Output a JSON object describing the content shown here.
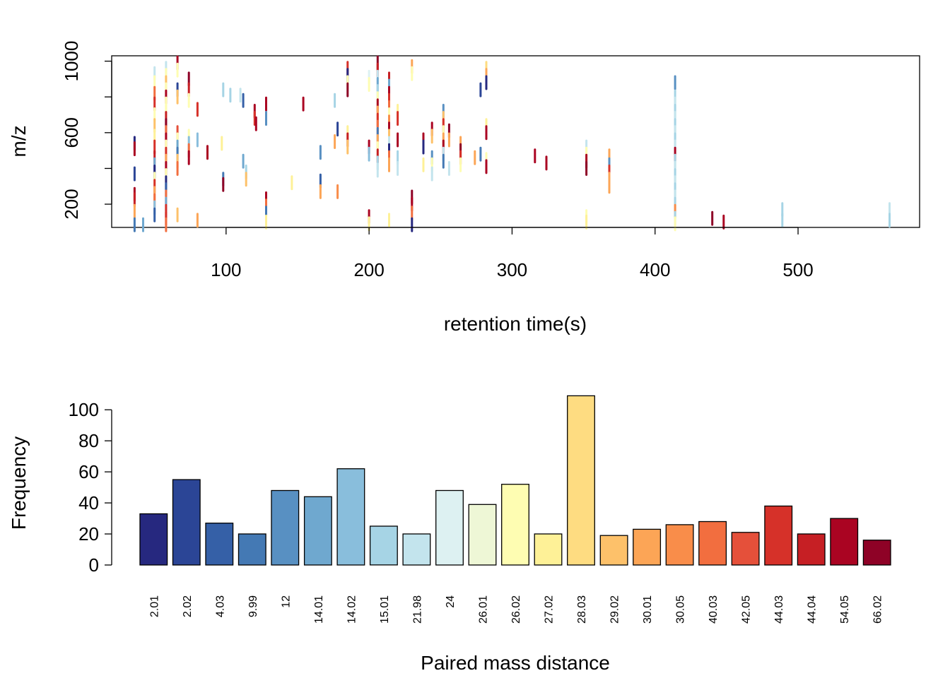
{
  "chart_data": [
    {
      "type": "scatter",
      "xlabel": "retention time(s)",
      "ylabel": "m/z",
      "xlim": [
        20,
        585
      ],
      "ylim": [
        70,
        1030
      ],
      "x_ticks": [
        100,
        200,
        300,
        400,
        500
      ],
      "y_ticks": [
        200,
        600,
        1000
      ],
      "y_minor_ticks": [
        400,
        800
      ],
      "grid": false,
      "marker": "vertical-dash",
      "colors_by_distance": true,
      "points": [
        [
          36,
          540,
          0
        ],
        [
          36,
          510,
          21
        ],
        [
          36,
          255,
          21
        ],
        [
          36,
          225,
          20
        ],
        [
          36,
          160,
          15
        ],
        [
          36,
          370,
          1
        ],
        [
          36,
          85,
          3
        ],
        [
          42,
          85,
          5
        ],
        [
          50,
          930,
          8
        ],
        [
          50,
          880,
          11
        ],
        [
          50,
          820,
          17
        ],
        [
          50,
          760,
          19
        ],
        [
          50,
          700,
          11
        ],
        [
          50,
          640,
          14
        ],
        [
          50,
          580,
          12
        ],
        [
          50,
          520,
          19
        ],
        [
          50,
          460,
          20
        ],
        [
          50,
          420,
          5
        ],
        [
          50,
          380,
          0
        ],
        [
          50,
          340,
          11
        ],
        [
          50,
          300,
          19
        ],
        [
          50,
          260,
          15
        ],
        [
          50,
          220,
          17
        ],
        [
          50,
          180,
          6
        ],
        [
          50,
          140,
          2
        ],
        [
          58,
          960,
          8
        ],
        [
          58,
          920,
          11
        ],
        [
          58,
          880,
          14
        ],
        [
          58,
          840,
          11
        ],
        [
          58,
          800,
          21
        ],
        [
          58,
          760,
          11
        ],
        [
          58,
          720,
          11
        ],
        [
          58,
          680,
          20
        ],
        [
          58,
          640,
          22
        ],
        [
          58,
          600,
          17
        ],
        [
          58,
          560,
          21
        ],
        [
          58,
          520,
          11
        ],
        [
          58,
          480,
          19
        ],
        [
          58,
          440,
          15
        ],
        [
          58,
          400,
          21
        ],
        [
          58,
          360,
          11
        ],
        [
          58,
          320,
          0
        ],
        [
          58,
          280,
          2
        ],
        [
          58,
          240,
          17
        ],
        [
          58,
          200,
          5
        ],
        [
          58,
          160,
          19
        ],
        [
          58,
          120,
          19
        ],
        [
          58,
          85,
          17
        ],
        [
          66,
          990,
          21
        ],
        [
          66,
          950,
          11
        ],
        [
          66,
          840,
          1
        ],
        [
          66,
          800,
          14
        ],
        [
          66,
          600,
          18
        ],
        [
          66,
          560,
          11
        ],
        [
          66,
          520,
          5
        ],
        [
          66,
          480,
          3
        ],
        [
          66,
          440,
          14
        ],
        [
          66,
          400,
          17
        ],
        [
          66,
          140,
          14
        ],
        [
          74,
          900,
          22
        ],
        [
          74,
          840,
          20
        ],
        [
          74,
          780,
          11
        ],
        [
          74,
          580,
          11
        ],
        [
          74,
          540,
          6
        ],
        [
          74,
          500,
          17
        ],
        [
          74,
          460,
          21
        ],
        [
          80,
          730,
          19
        ],
        [
          80,
          560,
          6
        ],
        [
          80,
          110,
          15
        ],
        [
          87,
          490,
          21
        ],
        [
          97,
          540,
          12
        ],
        [
          98,
          840,
          7
        ],
        [
          98,
          340,
          3
        ],
        [
          98,
          310,
          22
        ],
        [
          103,
          810,
          7
        ],
        [
          110,
          810,
          8
        ],
        [
          112,
          780,
          2
        ],
        [
          112,
          440,
          5
        ],
        [
          114,
          380,
          7
        ],
        [
          114,
          340,
          14
        ],
        [
          120,
          720,
          21
        ],
        [
          120,
          680,
          19
        ],
        [
          121,
          650,
          21
        ],
        [
          128,
          760,
          21
        ],
        [
          128,
          680,
          4
        ],
        [
          128,
          230,
          21
        ],
        [
          128,
          190,
          17
        ],
        [
          128,
          150,
          3
        ],
        [
          128,
          100,
          12
        ],
        [
          146,
          320,
          12
        ],
        [
          154,
          760,
          21
        ],
        [
          166,
          490,
          4
        ],
        [
          166,
          330,
          2
        ],
        [
          166,
          270,
          15
        ],
        [
          176,
          550,
          15
        ],
        [
          176,
          780,
          7
        ],
        [
          178,
          620,
          1
        ],
        [
          178,
          270,
          16
        ],
        [
          185,
          960,
          19
        ],
        [
          185,
          920,
          0
        ],
        [
          185,
          880,
          11
        ],
        [
          185,
          840,
          22
        ],
        [
          185,
          600,
          12
        ],
        [
          185,
          560,
          20
        ],
        [
          185,
          520,
          14
        ],
        [
          200,
          910,
          9
        ],
        [
          200,
          870,
          11
        ],
        [
          200,
          520,
          21
        ],
        [
          200,
          480,
          6
        ],
        [
          200,
          130,
          21
        ],
        [
          200,
          90,
          12
        ],
        [
          206,
          990,
          22
        ],
        [
          206,
          950,
          20
        ],
        [
          206,
          910,
          8
        ],
        [
          206,
          870,
          5
        ],
        [
          206,
          830,
          7
        ],
        [
          206,
          790,
          11
        ],
        [
          206,
          750,
          21
        ],
        [
          206,
          710,
          15
        ],
        [
          206,
          670,
          19
        ],
        [
          206,
          630,
          17
        ],
        [
          206,
          590,
          3
        ],
        [
          206,
          550,
          15
        ],
        [
          206,
          510,
          11
        ],
        [
          206,
          470,
          20
        ],
        [
          206,
          430,
          7
        ],
        [
          206,
          390,
          8
        ],
        [
          214,
          900,
          20
        ],
        [
          214,
          860,
          5
        ],
        [
          214,
          820,
          21
        ],
        [
          214,
          780,
          19
        ],
        [
          214,
          740,
          17
        ],
        [
          214,
          700,
          11
        ],
        [
          214,
          660,
          16
        ],
        [
          214,
          620,
          21
        ],
        [
          214,
          580,
          14
        ],
        [
          214,
          540,
          8
        ],
        [
          214,
          500,
          0
        ],
        [
          214,
          460,
          17
        ],
        [
          214,
          420,
          15
        ],
        [
          214,
          110,
          12
        ],
        [
          220,
          720,
          12
        ],
        [
          220,
          680,
          19
        ],
        [
          220,
          560,
          21
        ],
        [
          220,
          460,
          7
        ],
        [
          220,
          400,
          8
        ],
        [
          230,
          970,
          15
        ],
        [
          230,
          930,
          11
        ],
        [
          230,
          240,
          22
        ],
        [
          230,
          200,
          21
        ],
        [
          230,
          150,
          17
        ],
        [
          230,
          85,
          0
        ],
        [
          238,
          560,
          21
        ],
        [
          238,
          520,
          0
        ],
        [
          238,
          420,
          12
        ],
        [
          244,
          620,
          21
        ],
        [
          244,
          580,
          14
        ],
        [
          244,
          460,
          4
        ],
        [
          244,
          420,
          11
        ],
        [
          244,
          370,
          8
        ],
        [
          252,
          720,
          4
        ],
        [
          252,
          680,
          14
        ],
        [
          252,
          640,
          19
        ],
        [
          252,
          600,
          11
        ],
        [
          252,
          560,
          15
        ],
        [
          252,
          520,
          21
        ],
        [
          252,
          480,
          8
        ],
        [
          252,
          440,
          3
        ],
        [
          256,
          610,
          22
        ],
        [
          256,
          560,
          15
        ],
        [
          256,
          400,
          8
        ],
        [
          264,
          540,
          15
        ],
        [
          264,
          500,
          22
        ],
        [
          264,
          460,
          19
        ],
        [
          264,
          420,
          11
        ],
        [
          274,
          460,
          15
        ],
        [
          278,
          480,
          3
        ],
        [
          278,
          840,
          1
        ],
        [
          282,
          960,
          13
        ],
        [
          282,
          920,
          15
        ],
        [
          282,
          880,
          0
        ],
        [
          282,
          640,
          12
        ],
        [
          282,
          600,
          21
        ],
        [
          282,
          450,
          11
        ],
        [
          282,
          410,
          21
        ],
        [
          316,
          470,
          21
        ],
        [
          324,
          430,
          21
        ],
        [
          352,
          520,
          8
        ],
        [
          352,
          480,
          11
        ],
        [
          352,
          440,
          21
        ],
        [
          352,
          400,
          22
        ],
        [
          352,
          130,
          11
        ],
        [
          352,
          100,
          12
        ],
        [
          368,
          470,
          15
        ],
        [
          368,
          420,
          4
        ],
        [
          368,
          380,
          19
        ],
        [
          368,
          340,
          15
        ],
        [
          368,
          300,
          15
        ],
        [
          414,
          880,
          4
        ],
        [
          414,
          800,
          7
        ],
        [
          414,
          760,
          8
        ],
        [
          414,
          720,
          7
        ],
        [
          414,
          680,
          8
        ],
        [
          414,
          640,
          7
        ],
        [
          414,
          600,
          8
        ],
        [
          414,
          560,
          7
        ],
        [
          414,
          520,
          8
        ],
        [
          414,
          480,
          21
        ],
        [
          414,
          440,
          7
        ],
        [
          414,
          400,
          8
        ],
        [
          414,
          360,
          7
        ],
        [
          414,
          320,
          8
        ],
        [
          414,
          280,
          7
        ],
        [
          414,
          240,
          8
        ],
        [
          414,
          200,
          7
        ],
        [
          414,
          160,
          16
        ],
        [
          414,
          120,
          7
        ],
        [
          414,
          90,
          11
        ],
        [
          440,
          120,
          22
        ],
        [
          448,
          100,
          21
        ],
        [
          489,
          170,
          7
        ],
        [
          489,
          110,
          7
        ],
        [
          564,
          170,
          8
        ],
        [
          564,
          110,
          7
        ]
      ]
    },
    {
      "type": "bar",
      "xlabel": "Paired mass distance",
      "ylabel": "Frequency",
      "ylim": [
        0,
        110
      ],
      "y_ticks": [
        0,
        20,
        40,
        60,
        80,
        100
      ],
      "grid": false,
      "categories": [
        "2.01",
        "2.02",
        "4.03",
        "9.99",
        "12",
        "14.01",
        "14.02",
        "15.01",
        "21.98",
        "24",
        "26.01",
        "26.02",
        "27.02",
        "28.03",
        "29.02",
        "30.01",
        "30.05",
        "40.03",
        "42.05",
        "44.03",
        "44.04",
        "54.05",
        "66.02"
      ],
      "values": [
        33,
        55,
        27,
        20,
        48,
        44,
        62,
        25,
        20,
        48,
        39,
        52,
        20,
        109,
        19,
        23,
        26,
        28,
        21,
        38,
        20,
        30,
        16
      ],
      "colors": [
        "#26287F",
        "#2B4596",
        "#3560A7",
        "#4479B4",
        "#5890C2",
        "#6FA8CF",
        "#89BEDC",
        "#A6D4E5",
        "#C3E4ED",
        "#DDF1F2",
        "#EEF7D6",
        "#FEFDB2",
        "#FEF197",
        "#FEDC81",
        "#FDC16A",
        "#FCA556",
        "#F98D4A",
        "#F26E3F",
        "#E5503A",
        "#D63129",
        "#C61F24",
        "#AA0422",
        "#8E0226"
      ]
    }
  ]
}
